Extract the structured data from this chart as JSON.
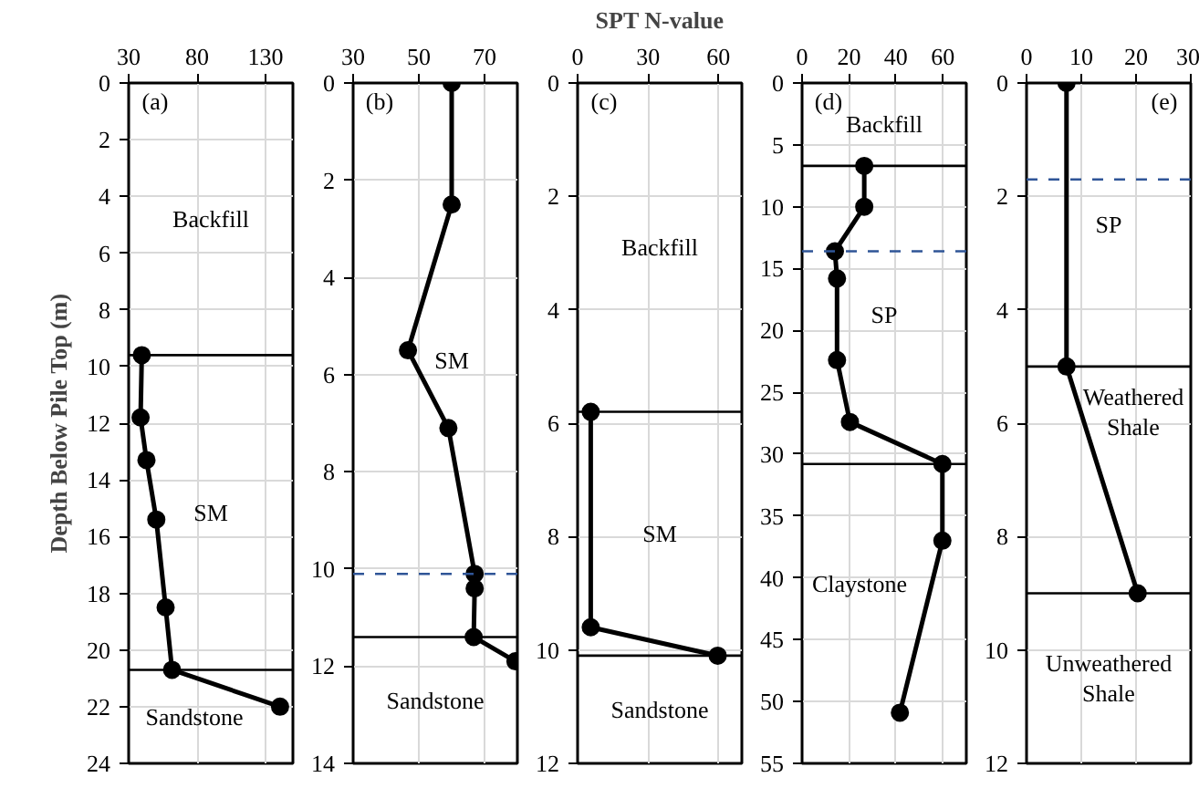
{
  "chart_data": [
    {
      "type": "line",
      "ylabel": "Depth Below Pile Top (m)",
      "xlim": [
        30,
        150
      ],
      "xticks": [
        30,
        80,
        130
      ],
      "ylim": [
        24,
        0
      ],
      "yticks": [
        0,
        2,
        4,
        6,
        8,
        10,
        12,
        14,
        16,
        18,
        20,
        22,
        24
      ],
      "grid": true,
      "marker": "circle",
      "series": [
        {
          "color": "#000000",
          "x": [
            39.6,
            38.7,
            43,
            50.2,
            57,
            61.7,
            140.6
          ],
          "values": [
            9.6,
            11.8,
            13.3,
            15.4,
            18.5,
            20.7,
            22.0
          ]
        }
      ],
      "ref_lines": [
        {
          "axis": "y",
          "value": 9.6,
          "color": "#000000",
          "line_style": "solid"
        },
        {
          "axis": "y",
          "value": 20.7,
          "color": "#000000",
          "line_style": "solid"
        }
      ],
      "annotations": [
        "(a)",
        "Backfill",
        "SM",
        "Sandstone"
      ]
    },
    {
      "type": "line",
      "xlim": [
        30,
        80
      ],
      "xticks": [
        30,
        50,
        70
      ],
      "ylim": [
        14,
        0
      ],
      "yticks": [
        0,
        2,
        4,
        6,
        8,
        10,
        12,
        14
      ],
      "grid": true,
      "marker": "circle",
      "series": [
        {
          "color": "#000000",
          "x": [
            60,
            60,
            46.7,
            59,
            67,
            67,
            66.7,
            79.4
          ],
          "values": [
            0,
            2.5,
            5.5,
            7.1,
            10.1,
            10.4,
            11.4,
            11.9
          ]
        }
      ],
      "ref_lines": [
        {
          "axis": "y",
          "value": 10.1,
          "color": "#2f5597",
          "line_style": "dashed"
        },
        {
          "axis": "y",
          "value": 11.4,
          "color": "#000000",
          "line_style": "solid"
        }
      ],
      "annotations": [
        "(b)",
        "SM",
        "Sandstone"
      ]
    },
    {
      "type": "line",
      "xlabel": "SPT N-value",
      "xlim": [
        0,
        70
      ],
      "xticks": [
        0,
        30,
        60
      ],
      "ylim": [
        12,
        0
      ],
      "yticks": [
        0,
        2,
        4,
        6,
        8,
        10,
        12
      ],
      "grid": true,
      "marker": "circle",
      "series": [
        {
          "color": "#000000",
          "x": [
            5.6,
            5.6,
            59.7
          ],
          "values": [
            5.8,
            9.6,
            10.1
          ]
        }
      ],
      "ref_lines": [
        {
          "axis": "y",
          "value": 5.8,
          "color": "#000000",
          "line_style": "solid"
        },
        {
          "axis": "y",
          "value": 10.1,
          "color": "#000000",
          "line_style": "solid"
        }
      ],
      "annotations": [
        "(c)",
        "Backfill",
        "SM",
        "Sandstone"
      ]
    },
    {
      "type": "line",
      "xlim": [
        0,
        70
      ],
      "xticks": [
        0,
        20,
        40,
        60
      ],
      "ylim": [
        55,
        0
      ],
      "yticks": [
        0,
        5,
        10,
        15,
        20,
        25,
        30,
        35,
        40,
        45,
        50,
        55
      ],
      "grid": true,
      "marker": "circle",
      "series": [
        {
          "color": "#000000",
          "x": [
            26.5,
            26.5,
            14,
            14.9,
            14.9,
            20.4,
            59.8,
            59.8,
            41.7
          ],
          "values": [
            6.7,
            10,
            13.6,
            15.8,
            22.4,
            27.4,
            30.8,
            37.0,
            50.9
          ]
        }
      ],
      "ref_lines": [
        {
          "axis": "y",
          "value": 6.7,
          "color": "#000000",
          "line_style": "solid"
        },
        {
          "axis": "y",
          "value": 13.6,
          "color": "#2f5597",
          "line_style": "dashed"
        },
        {
          "axis": "y",
          "value": 30.8,
          "color": "#000000",
          "line_style": "solid"
        }
      ],
      "annotations": [
        "(d)",
        "Backfill",
        "SP",
        "Claystone"
      ]
    },
    {
      "type": "line",
      "xlim": [
        0,
        30
      ],
      "xticks": [
        0,
        10,
        20,
        30
      ],
      "ylim": [
        12,
        0
      ],
      "yticks": [
        0,
        2,
        4,
        6,
        8,
        10,
        12
      ],
      "grid": true,
      "marker": "circle",
      "series": [
        {
          "color": "#000000",
          "x": [
            7.3,
            7.3,
            20.3
          ],
          "values": [
            0,
            5.0,
            9.0
          ]
        }
      ],
      "ref_lines": [
        {
          "axis": "y",
          "value": 1.7,
          "color": "#2f5597",
          "line_style": "dashed"
        },
        {
          "axis": "y",
          "value": 5.0,
          "color": "#000000",
          "line_style": "solid"
        },
        {
          "axis": "y",
          "value": 9.0,
          "color": "#000000",
          "line_style": "solid"
        }
      ],
      "annotations": [
        "(e)",
        "SP",
        "Weathered\nShale",
        "Unweathered\nShale"
      ]
    }
  ]
}
